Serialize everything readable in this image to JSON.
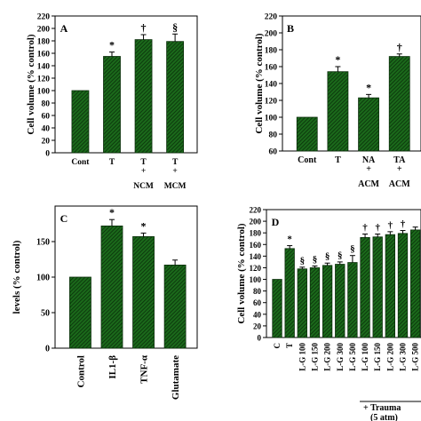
{
  "chart_data": [
    {
      "panel": "A",
      "type": "bar",
      "ylabel": "Cell volume (% control)",
      "ylim": [
        0,
        220
      ],
      "yticks": [
        0,
        20,
        40,
        60,
        80,
        100,
        120,
        140,
        160,
        180,
        200,
        220
      ],
      "categories": [
        [
          "Cont"
        ],
        [
          "T"
        ],
        [
          "T",
          "+",
          "NCM"
        ],
        [
          "T",
          "+",
          "MCM"
        ]
      ],
      "values": [
        100,
        155,
        182,
        179
      ],
      "errors": [
        0,
        7,
        8,
        12
      ],
      "significance": [
        "",
        "*",
        "†",
        "§"
      ]
    },
    {
      "panel": "B",
      "type": "bar",
      "ylabel": "Cell volume (% control)",
      "ylim": [
        60,
        220
      ],
      "yticks": [
        60,
        80,
        100,
        120,
        140,
        160,
        180,
        200,
        220
      ],
      "categories": [
        [
          "Cont"
        ],
        [
          "T"
        ],
        [
          "NA",
          "+",
          "ACM"
        ],
        [
          "TA",
          "+",
          "ACM"
        ]
      ],
      "values": [
        100,
        154,
        123,
        172
      ],
      "errors": [
        0,
        6,
        4,
        3
      ],
      "significance": [
        "",
        "*",
        "*",
        "†"
      ]
    },
    {
      "panel": "C",
      "type": "bar",
      "ylabel": "levels (% control)",
      "ylim": [
        0,
        200
      ],
      "yticks": [
        0,
        50,
        100,
        150
      ],
      "categories": [
        [
          "Control"
        ],
        [
          "IL1-β"
        ],
        [
          "TNF-α"
        ],
        [
          "Glutamate"
        ]
      ],
      "values": [
        100,
        172,
        157,
        117
      ],
      "errors": [
        0,
        9,
        5,
        7
      ],
      "significance": [
        "",
        "*",
        "*",
        ""
      ]
    },
    {
      "panel": "D",
      "type": "bar",
      "ylabel": "Cell volume (% control)",
      "ylim": [
        0,
        220
      ],
      "yticks": [
        0,
        20,
        40,
        60,
        80,
        100,
        120,
        140,
        160,
        180,
        200,
        220
      ],
      "categories": [
        "C",
        "T",
        "L-G 100",
        "L-G 150",
        "L-G 200",
        "L-G 300",
        "L-G 500",
        "L-G 100",
        "L-G 150",
        "L-G 200",
        "L-G 300",
        "L-G 500"
      ],
      "values": [
        100,
        153,
        118,
        120,
        124,
        126,
        129,
        172,
        173,
        177,
        179,
        185
      ],
      "errors": [
        0,
        5,
        3,
        3,
        4,
        4,
        12,
        6,
        5,
        5,
        5,
        5
      ],
      "significance": [
        "",
        "*",
        "§",
        "§",
        "§",
        "§",
        "§",
        "†",
        "†",
        "†",
        "†",
        ""
      ],
      "group_label": [
        "+ Trauma",
        "(5 atm)"
      ]
    }
  ]
}
